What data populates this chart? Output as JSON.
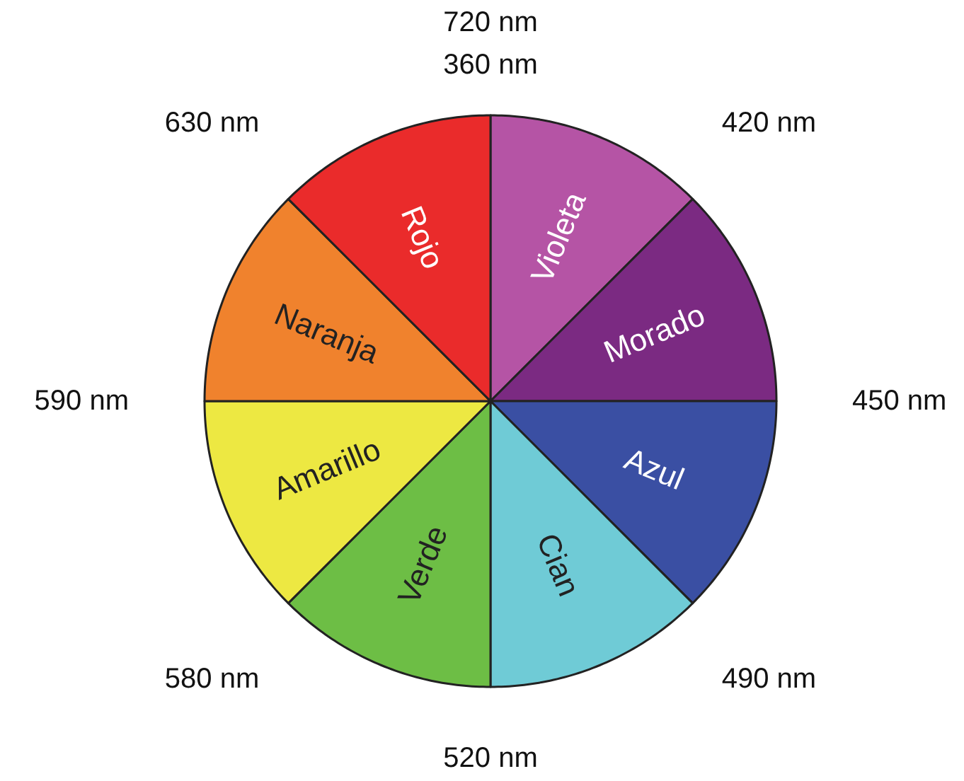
{
  "chart_data": {
    "type": "pie",
    "categories": [
      "Violeta",
      "Morado",
      "Azul",
      "Cian",
      "Verde",
      "Amarillo",
      "Naranja",
      "Rojo"
    ],
    "values": [
      12.5,
      12.5,
      12.5,
      12.5,
      12.5,
      12.5,
      12.5,
      12.5
    ],
    "colors": [
      "#b554a5",
      "#7b2a82",
      "#3a4fa3",
      "#6fcbd6",
      "#6dbe45",
      "#ede842",
      "#f0822d",
      "#ea2b2b"
    ],
    "annotations": [
      "720 nm\n360 nm",
      "420 nm",
      "450 nm",
      "490 nm",
      "520 nm",
      "580 nm",
      "590 nm",
      "630 nm"
    ]
  }
}
